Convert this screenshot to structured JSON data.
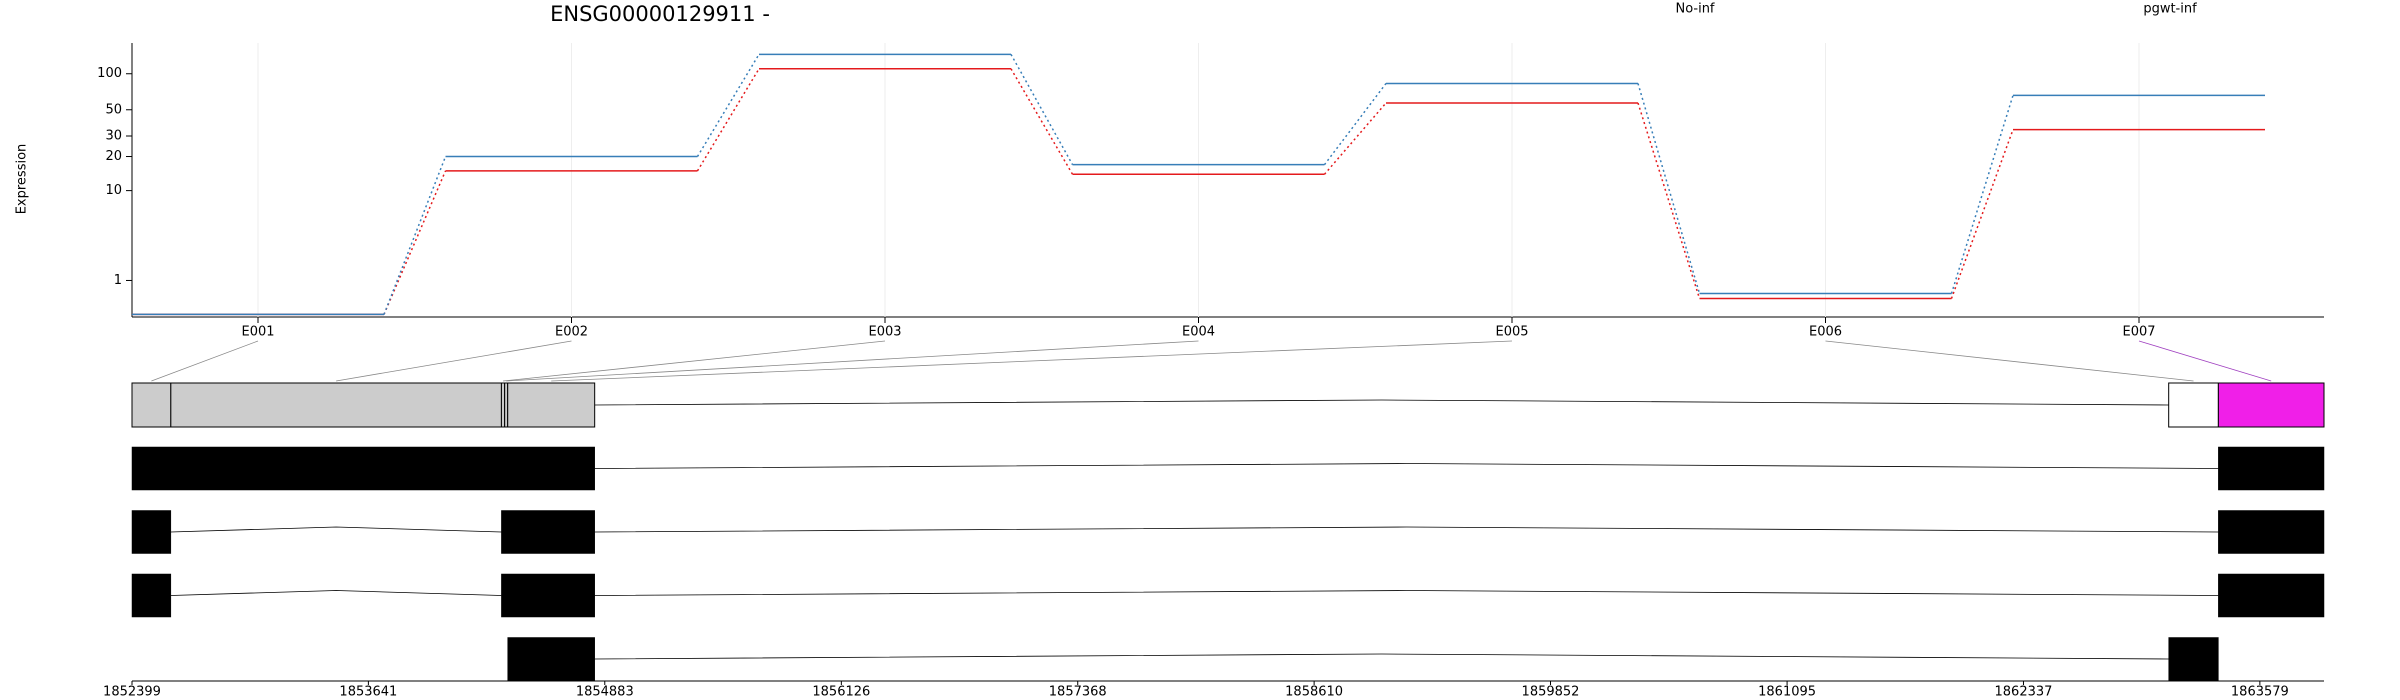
{
  "chart_data": {
    "type": "step-line",
    "title": "ENSG00000129911 -",
    "y_label": "Expression",
    "yscale": "log10(x+1)",
    "categories": [
      "E001",
      "E002",
      "E003",
      "E004",
      "E005",
      "E006",
      "E007"
    ],
    "series": [
      {
        "name": "No-inf",
        "color": "#e41a1c",
        "values": [
          0.05,
          15,
          110,
          14,
          57,
          0.42,
          34
        ]
      },
      {
        "name": "pgwt-inf",
        "color": "#377eb8",
        "values": [
          0.05,
          20,
          145,
          17,
          83,
          0.56,
          66
        ]
      }
    ],
    "ylim": [
      0,
      180
    ],
    "yticks": [
      1,
      10,
      20,
      30,
      50,
      100
    ],
    "genomic_xticks": [
      1852399,
      1853641,
      1854883,
      1856126,
      1857368,
      1858610,
      1859852,
      1861095,
      1862337,
      1863579
    ],
    "genomic_xlim": [
      1852399,
      1863916
    ],
    "highlight_color": "#f01fe8",
    "exon_bins": [
      [
        1852399,
        1852603
      ],
      [
        1852603,
        1854340
      ],
      [
        1854340,
        1854357
      ],
      [
        1854357,
        1854373
      ],
      [
        1854373,
        1854830
      ],
      [
        1863100,
        1863361
      ],
      [
        1863361,
        1863916
      ]
    ],
    "highlight_bin": 6,
    "transcripts": [
      [
        [
          1852399,
          1854830
        ],
        [
          1863361,
          1863916
        ]
      ],
      [
        [
          1852399,
          1852603
        ],
        [
          1854340,
          1854830
        ],
        [
          1863361,
          1863916
        ]
      ],
      [
        [
          1852399,
          1852603
        ],
        [
          1854340,
          1854830
        ],
        [
          1863361,
          1863916
        ]
      ],
      [
        [
          1854373,
          1854830
        ],
        [
          1863100,
          1863361
        ]
      ]
    ]
  }
}
